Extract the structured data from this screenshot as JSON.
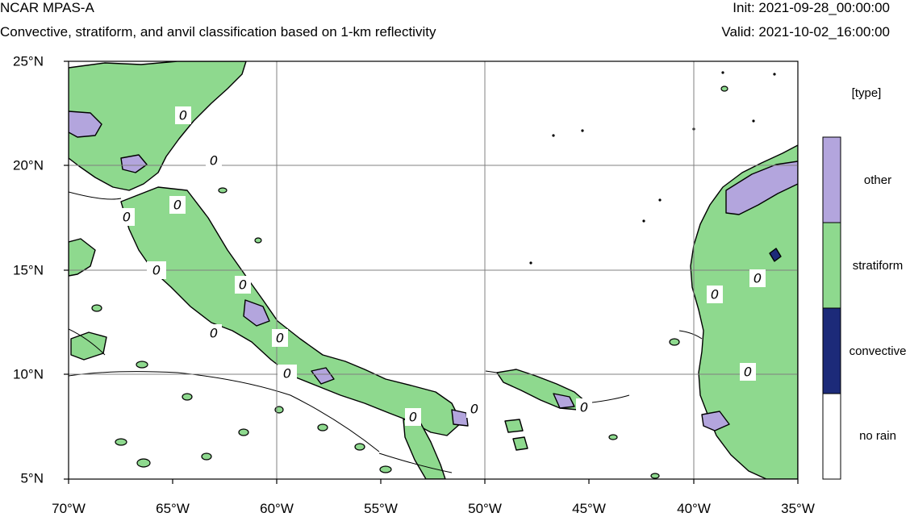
{
  "header": {
    "title": "NCAR MPAS-A",
    "subtitle": "Convective, stratiform, and anvil classification based on 1-km reflectivity",
    "init": "Init: 2021-09-28_00:00:00",
    "valid": "Valid: 2021-10-02_16:00:00"
  },
  "map": {
    "lon_labels": [
      "70°W",
      "65°W",
      "60°W",
      "55°W",
      "50°W",
      "45°W",
      "40°W",
      "35°W"
    ],
    "lat_labels": [
      "25°N",
      "20°N",
      "15°N",
      "10°N",
      "5°N"
    ],
    "contour_label": "0"
  },
  "legend": {
    "title": "[type]",
    "items": [
      {
        "label": "other",
        "color": "#b3a5dd"
      },
      {
        "label": "stratiform",
        "color": "#8ed98e"
      },
      {
        "label": "convective",
        "color": "#1c2a79"
      },
      {
        "label": "no rain",
        "color": "#ffffff"
      }
    ]
  },
  "colors": {
    "other": "#b3a5dd",
    "stratiform": "#8ed98e",
    "convective": "#1c2a79",
    "no_rain": "#ffffff",
    "contour": "#000000",
    "grid": "#808080"
  }
}
